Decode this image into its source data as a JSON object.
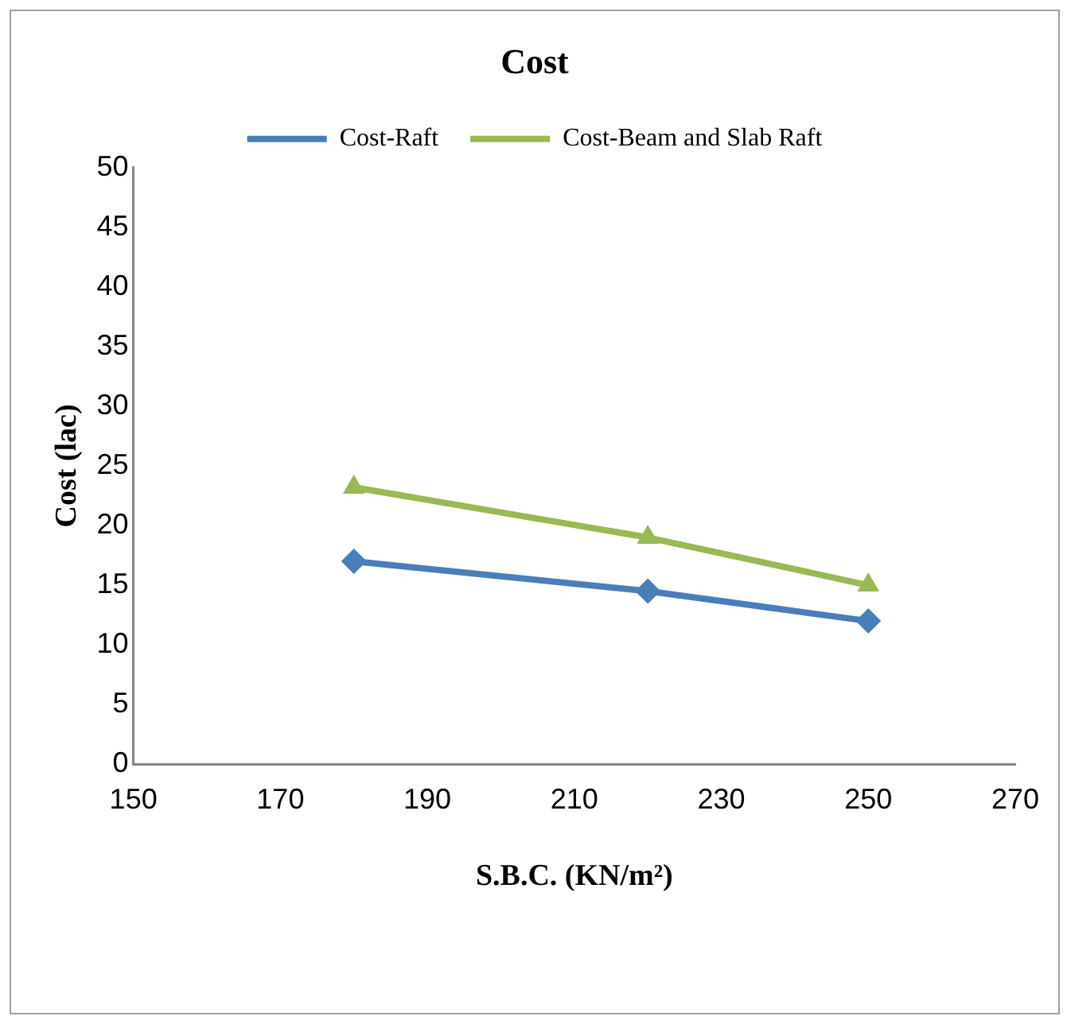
{
  "chart_data": {
    "type": "line",
    "title": "Cost",
    "xlabel": "S.B.C. (KN/m²)",
    "ylabel": "Cost (lac)",
    "x": [
      180,
      220,
      250
    ],
    "series": [
      {
        "name": "Cost-Raft",
        "color": "#4a7ebb",
        "values": [
          17,
          14.5,
          12
        ],
        "marker": "diamond"
      },
      {
        "name": "Cost-Beam and Slab Raft",
        "color": "#98b954",
        "values": [
          23.2,
          19,
          15
        ],
        "marker": "triangle"
      }
    ],
    "xlim": [
      150,
      270
    ],
    "xticks": [
      150,
      170,
      190,
      210,
      230,
      250,
      270
    ],
    "ylim": [
      0,
      50
    ],
    "yticks": [
      0,
      5,
      10,
      15,
      20,
      25,
      30,
      35,
      40,
      45,
      50
    ],
    "grid": false,
    "legend": "top",
    "line_style": "solid"
  }
}
